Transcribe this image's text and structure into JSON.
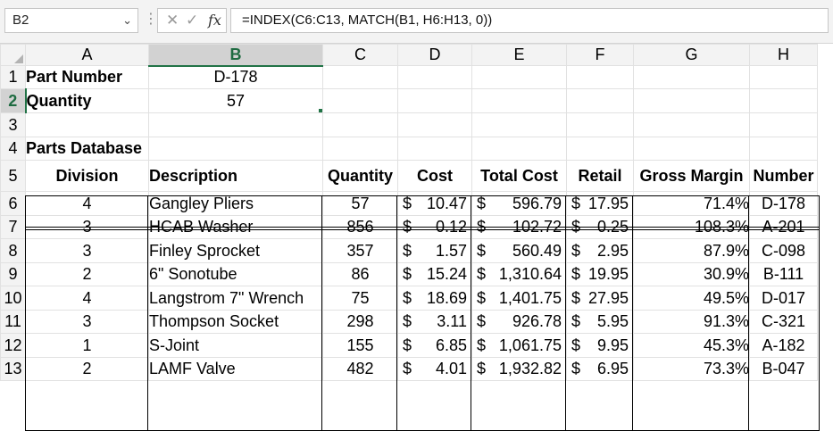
{
  "formula_bar": {
    "name_box": "B2",
    "chevron": "⌄",
    "dots": "⋮",
    "cancel_icon": "✕",
    "enter_icon": "✓",
    "fx_label": "fx",
    "formula": "=INDEX(C6:C13, MATCH(B1, H6:H13, 0))"
  },
  "columns": [
    "A",
    "B",
    "C",
    "D",
    "E",
    "F",
    "G",
    "H"
  ],
  "rows": [
    "1",
    "2",
    "3",
    "4",
    "5",
    "6",
    "7",
    "8",
    "9",
    "10",
    "11",
    "12",
    "13"
  ],
  "lookup": {
    "part_label": "Part Number",
    "part_value": "D-178",
    "qty_label": "Quantity",
    "qty_value": "57"
  },
  "db_title": "Parts Database",
  "headers": [
    "Division",
    "Description",
    "Quantity",
    "Cost",
    "Total Cost",
    "Retail",
    "Gross Margin",
    "Number"
  ],
  "records": [
    {
      "division": "4",
      "description": "Gangley Pliers",
      "quantity": "57",
      "cost": "10.47",
      "total": "596.79",
      "retail": "17.95",
      "margin": "71.4%",
      "number": "D-178"
    },
    {
      "division": "3",
      "description": "HCAB Washer",
      "quantity": "856",
      "cost": "0.12",
      "total": "102.72",
      "retail": "0.25",
      "margin": "108.3%",
      "number": "A-201"
    },
    {
      "division": "3",
      "description": "Finley Sprocket",
      "quantity": "357",
      "cost": "1.57",
      "total": "560.49",
      "retail": "2.95",
      "margin": "87.9%",
      "number": "C-098"
    },
    {
      "division": "2",
      "description": "6\" Sonotube",
      "quantity": "86",
      "cost": "15.24",
      "total": "1,310.64",
      "retail": "19.95",
      "margin": "30.9%",
      "number": "B-111"
    },
    {
      "division": "4",
      "description": "Langstrom 7\" Wrench",
      "quantity": "75",
      "cost": "18.69",
      "total": "1,401.75",
      "retail": "27.95",
      "margin": "49.5%",
      "number": "D-017"
    },
    {
      "division": "3",
      "description": "Thompson Socket",
      "quantity": "298",
      "cost": "3.11",
      "total": "926.78",
      "retail": "5.95",
      "margin": "91.3%",
      "number": "C-321"
    },
    {
      "division": "1",
      "description": "S-Joint",
      "quantity": "155",
      "cost": "6.85",
      "total": "1,061.75",
      "retail": "9.95",
      "margin": "45.3%",
      "number": "A-182"
    },
    {
      "division": "2",
      "description": "LAMF Valve",
      "quantity": "482",
      "cost": "4.01",
      "total": "1,932.82",
      "retail": "6.95",
      "margin": "73.3%",
      "number": "B-047"
    }
  ],
  "currency_symbol": "$",
  "colors": {
    "selection": "#217346",
    "header_bg": "#f3f3f3"
  }
}
